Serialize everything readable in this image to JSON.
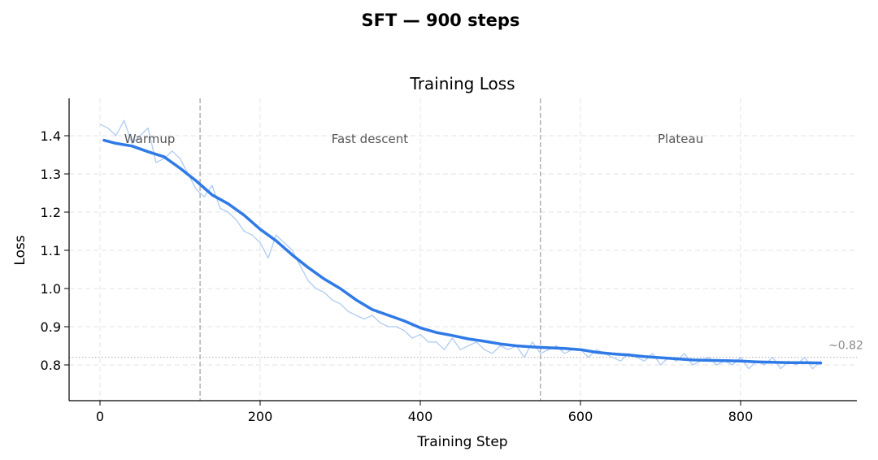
{
  "figure": {
    "suptitle": "SFT — 900 steps"
  },
  "chart_data": {
    "type": "line",
    "title": "Training Loss",
    "xlabel": "Training Step",
    "ylabel": "Loss",
    "xlim": [
      -40,
      945
    ],
    "ylim": [
      0.71,
      1.495
    ],
    "xticks": [
      0,
      200,
      400,
      600,
      800
    ],
    "yticks": [
      0.8,
      0.9,
      1.0,
      1.1,
      1.2,
      1.3,
      1.4
    ],
    "xtick_labels": [
      "0",
      "200",
      "400",
      "600",
      "800"
    ],
    "ytick_labels": [
      "0.8",
      "0.9",
      "1.0",
      "1.1",
      "1.2",
      "1.3",
      "1.4"
    ],
    "grid": true,
    "phase_boundaries": [
      125,
      550
    ],
    "phases": [
      {
        "label": "Warmup",
        "x": 62
      },
      {
        "label": "Fast descent",
        "x": 337
      },
      {
        "label": "Plateau",
        "x": 725
      }
    ],
    "reference_line": {
      "y": 0.82,
      "label": "~0.82"
    },
    "colors": {
      "smoothed": "#2f7ae6",
      "raw": "#aecbf2",
      "boundary": "#b0b0b0",
      "reference": "#bbbbbb"
    },
    "series": [
      {
        "style": "raw",
        "x": [
          0,
          10,
          20,
          30,
          40,
          50,
          60,
          70,
          80,
          90,
          100,
          110,
          120,
          130,
          140,
          150,
          160,
          170,
          180,
          190,
          200,
          210,
          220,
          230,
          240,
          250,
          260,
          270,
          280,
          290,
          300,
          310,
          320,
          330,
          340,
          350,
          360,
          370,
          380,
          390,
          400,
          410,
          420,
          430,
          440,
          450,
          460,
          470,
          480,
          490,
          500,
          510,
          520,
          530,
          540,
          550,
          560,
          570,
          580,
          590,
          600,
          610,
          620,
          630,
          640,
          650,
          660,
          670,
          680,
          690,
          700,
          710,
          720,
          730,
          740,
          750,
          760,
          770,
          780,
          790,
          800,
          810,
          820,
          830,
          840,
          850,
          860,
          870,
          880,
          890,
          900
        ],
        "y": [
          1.43,
          1.42,
          1.4,
          1.44,
          1.38,
          1.4,
          1.42,
          1.33,
          1.34,
          1.36,
          1.34,
          1.3,
          1.26,
          1.24,
          1.27,
          1.21,
          1.2,
          1.18,
          1.15,
          1.14,
          1.12,
          1.08,
          1.14,
          1.12,
          1.1,
          1.06,
          1.02,
          1.0,
          0.99,
          0.97,
          0.96,
          0.94,
          0.93,
          0.92,
          0.93,
          0.91,
          0.9,
          0.9,
          0.89,
          0.87,
          0.88,
          0.86,
          0.86,
          0.84,
          0.87,
          0.84,
          0.85,
          0.86,
          0.84,
          0.83,
          0.85,
          0.84,
          0.85,
          0.82,
          0.86,
          0.83,
          0.84,
          0.85,
          0.83,
          0.84,
          0.84,
          0.82,
          0.84,
          0.83,
          0.82,
          0.81,
          0.83,
          0.82,
          0.81,
          0.83,
          0.8,
          0.82,
          0.81,
          0.83,
          0.8,
          0.81,
          0.82,
          0.8,
          0.81,
          0.8,
          0.82,
          0.79,
          0.81,
          0.8,
          0.82,
          0.79,
          0.81,
          0.8,
          0.82,
          0.79,
          0.81
        ]
      },
      {
        "style": "smoothed",
        "x": [
          5,
          20,
          40,
          60,
          80,
          100,
          120,
          140,
          160,
          180,
          200,
          220,
          240,
          260,
          280,
          300,
          320,
          340,
          360,
          380,
          400,
          420,
          440,
          460,
          480,
          500,
          520,
          540,
          560,
          580,
          600,
          620,
          640,
          660,
          680,
          700,
          720,
          740,
          760,
          780,
          800,
          820,
          840,
          860,
          880,
          900
        ],
        "y": [
          1.388,
          1.38,
          1.373,
          1.358,
          1.345,
          1.315,
          1.282,
          1.245,
          1.222,
          1.192,
          1.155,
          1.125,
          1.088,
          1.055,
          1.025,
          1.0,
          0.97,
          0.945,
          0.93,
          0.915,
          0.897,
          0.885,
          0.877,
          0.868,
          0.862,
          0.855,
          0.85,
          0.847,
          0.845,
          0.843,
          0.84,
          0.833,
          0.829,
          0.826,
          0.822,
          0.819,
          0.816,
          0.813,
          0.812,
          0.811,
          0.81,
          0.808,
          0.807,
          0.806,
          0.806,
          0.805
        ]
      }
    ]
  }
}
